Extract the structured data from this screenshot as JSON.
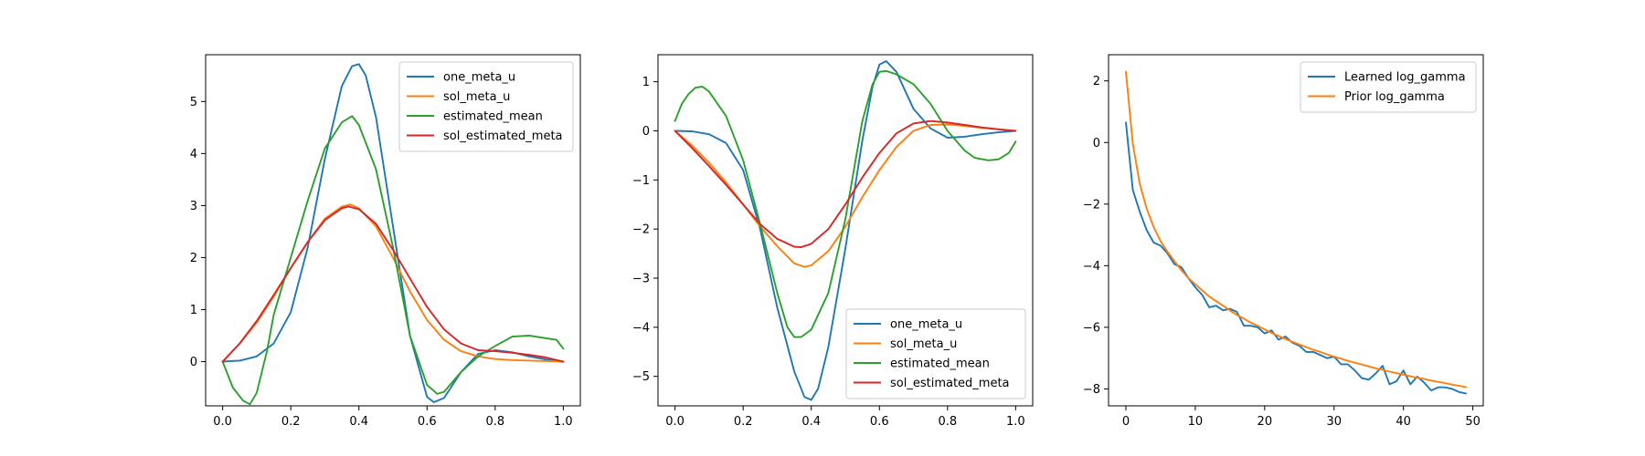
{
  "figure": {
    "background": "#ffffff"
  },
  "chart_data": [
    {
      "type": "line",
      "title": "",
      "xlabel": "",
      "ylabel": "",
      "xlim": [
        -0.05,
        1.05
      ],
      "ylim": [
        -0.85,
        5.9
      ],
      "xticks": [
        0.0,
        0.2,
        0.4,
        0.6,
        0.8,
        1.0
      ],
      "xtick_labels": [
        "0.0",
        "0.2",
        "0.4",
        "0.6",
        "0.8",
        "1.0"
      ],
      "yticks": [
        0,
        1,
        2,
        3,
        4,
        5
      ],
      "ytick_labels": [
        "0",
        "1",
        "2",
        "3",
        "4",
        "5"
      ],
      "legend_position": "upper right",
      "series": [
        {
          "name": "one_meta_u",
          "color": "#1f77b4",
          "x": [
            0,
            0.05,
            0.1,
            0.15,
            0.2,
            0.25,
            0.3,
            0.35,
            0.38,
            0.4,
            0.42,
            0.45,
            0.5,
            0.55,
            0.6,
            0.62,
            0.65,
            0.7,
            0.75,
            0.8,
            0.85,
            0.9,
            0.95,
            1.0
          ],
          "y": [
            0,
            0.02,
            0.1,
            0.35,
            0.95,
            2.2,
            3.9,
            5.3,
            5.68,
            5.72,
            5.5,
            4.7,
            2.6,
            0.5,
            -0.68,
            -0.78,
            -0.7,
            -0.2,
            0.15,
            0.22,
            0.18,
            0.1,
            0.04,
            0.0
          ]
        },
        {
          "name": "sol_meta_u",
          "color": "#ff7f0e",
          "x": [
            0,
            0.05,
            0.1,
            0.15,
            0.2,
            0.25,
            0.3,
            0.35,
            0.375,
            0.4,
            0.45,
            0.5,
            0.55,
            0.6,
            0.65,
            0.7,
            0.75,
            0.8,
            0.85,
            0.9,
            0.95,
            1.0
          ],
          "y": [
            0,
            0.35,
            0.75,
            1.25,
            1.8,
            2.3,
            2.75,
            2.98,
            3.02,
            2.95,
            2.6,
            2.0,
            1.35,
            0.8,
            0.42,
            0.2,
            0.1,
            0.05,
            0.03,
            0.02,
            0.01,
            0.0
          ]
        },
        {
          "name": "estimated_mean",
          "color": "#2ca02c",
          "x": [
            0,
            0.03,
            0.06,
            0.08,
            0.1,
            0.13,
            0.15,
            0.2,
            0.25,
            0.3,
            0.35,
            0.38,
            0.4,
            0.45,
            0.5,
            0.55,
            0.6,
            0.63,
            0.65,
            0.7,
            0.75,
            0.8,
            0.85,
            0.9,
            0.95,
            0.98,
            1.0
          ],
          "y": [
            0,
            -0.5,
            -0.75,
            -0.82,
            -0.6,
            0.2,
            0.9,
            2.0,
            3.1,
            4.1,
            4.6,
            4.72,
            4.55,
            3.7,
            2.2,
            0.5,
            -0.45,
            -0.62,
            -0.58,
            -0.2,
            0.1,
            0.3,
            0.48,
            0.5,
            0.45,
            0.42,
            0.25
          ]
        },
        {
          "name": "sol_estimated_meta",
          "color": "#d62728",
          "x": [
            0,
            0.05,
            0.1,
            0.15,
            0.2,
            0.25,
            0.3,
            0.35,
            0.37,
            0.4,
            0.45,
            0.5,
            0.55,
            0.6,
            0.65,
            0.7,
            0.75,
            0.8,
            0.85,
            0.9,
            0.95,
            1.0
          ],
          "y": [
            0,
            0.35,
            0.78,
            1.28,
            1.8,
            2.3,
            2.72,
            2.95,
            2.98,
            2.93,
            2.65,
            2.15,
            1.6,
            1.05,
            0.62,
            0.35,
            0.22,
            0.2,
            0.17,
            0.13,
            0.08,
            0.0
          ]
        }
      ]
    },
    {
      "type": "line",
      "title": "",
      "xlabel": "",
      "ylabel": "",
      "xlim": [
        -0.05,
        1.05
      ],
      "ylim": [
        -5.6,
        1.55
      ],
      "xticks": [
        0.0,
        0.2,
        0.4,
        0.6,
        0.8,
        1.0
      ],
      "xtick_labels": [
        "0.0",
        "0.2",
        "0.4",
        "0.6",
        "0.8",
        "1.0"
      ],
      "yticks": [
        -5,
        -4,
        -3,
        -2,
        -1,
        0,
        1
      ],
      "ytick_labels": [
        "−5",
        "−4",
        "−3",
        "−2",
        "−1",
        "0",
        "1"
      ],
      "legend_position": "lower right",
      "series": [
        {
          "name": "one_meta_u",
          "color": "#1f77b4",
          "x": [
            0,
            0.05,
            0.1,
            0.15,
            0.2,
            0.25,
            0.3,
            0.35,
            0.38,
            0.4,
            0.42,
            0.45,
            0.5,
            0.55,
            0.58,
            0.6,
            0.62,
            0.65,
            0.7,
            0.75,
            0.8,
            0.85,
            0.9,
            0.95,
            1.0
          ],
          "y": [
            0,
            -0.01,
            -0.07,
            -0.25,
            -0.8,
            -2.0,
            -3.6,
            -4.9,
            -5.42,
            -5.48,
            -5.25,
            -4.4,
            -2.4,
            -0.2,
            0.9,
            1.35,
            1.42,
            1.2,
            0.45,
            0.05,
            -0.14,
            -0.12,
            -0.07,
            -0.03,
            0.0
          ]
        },
        {
          "name": "sol_meta_u",
          "color": "#ff7f0e",
          "x": [
            0,
            0.05,
            0.1,
            0.15,
            0.2,
            0.25,
            0.3,
            0.35,
            0.38,
            0.4,
            0.45,
            0.5,
            0.55,
            0.6,
            0.65,
            0.7,
            0.75,
            0.8,
            0.85,
            0.9,
            0.95,
            1.0
          ],
          "y": [
            0,
            -0.3,
            -0.65,
            -1.05,
            -1.5,
            -1.95,
            -2.35,
            -2.7,
            -2.77,
            -2.74,
            -2.45,
            -1.95,
            -1.35,
            -0.8,
            -0.33,
            0.0,
            0.12,
            0.13,
            0.1,
            0.06,
            0.03,
            0.0
          ]
        },
        {
          "name": "estimated_mean",
          "color": "#2ca02c",
          "x": [
            0,
            0.02,
            0.04,
            0.06,
            0.08,
            0.1,
            0.15,
            0.2,
            0.25,
            0.3,
            0.33,
            0.35,
            0.37,
            0.4,
            0.45,
            0.5,
            0.55,
            0.58,
            0.6,
            0.62,
            0.65,
            0.7,
            0.75,
            0.8,
            0.85,
            0.88,
            0.92,
            0.95,
            0.98,
            1.0
          ],
          "y": [
            0.2,
            0.55,
            0.75,
            0.88,
            0.9,
            0.8,
            0.3,
            -0.6,
            -1.9,
            -3.3,
            -4.0,
            -4.2,
            -4.2,
            -4.05,
            -3.3,
            -1.8,
            0.2,
            0.95,
            1.2,
            1.22,
            1.15,
            0.95,
            0.55,
            0.0,
            -0.4,
            -0.55,
            -0.6,
            -0.58,
            -0.45,
            -0.22
          ]
        },
        {
          "name": "sol_estimated_meta",
          "color": "#d62728",
          "x": [
            0,
            0.05,
            0.1,
            0.15,
            0.2,
            0.25,
            0.3,
            0.35,
            0.37,
            0.4,
            0.45,
            0.5,
            0.55,
            0.6,
            0.65,
            0.7,
            0.75,
            0.8,
            0.85,
            0.9,
            0.95,
            1.0
          ],
          "y": [
            0,
            -0.35,
            -0.72,
            -1.1,
            -1.5,
            -1.9,
            -2.2,
            -2.36,
            -2.37,
            -2.3,
            -2.0,
            -1.5,
            -0.95,
            -0.45,
            -0.05,
            0.15,
            0.2,
            0.17,
            0.12,
            0.07,
            0.03,
            0.0
          ]
        }
      ]
    },
    {
      "type": "line",
      "title": "",
      "xlabel": "",
      "ylabel": "",
      "xlim": [
        -2.5,
        51.5
      ],
      "ylim": [
        -8.55,
        2.85
      ],
      "xticks": [
        0,
        10,
        20,
        30,
        40,
        50
      ],
      "xtick_labels": [
        "0",
        "10",
        "20",
        "30",
        "40",
        "50"
      ],
      "yticks": [
        -8,
        -6,
        -4,
        -2,
        0,
        2
      ],
      "ytick_labels": [
        "−8",
        "−6",
        "−4",
        "−2",
        "0",
        "2"
      ],
      "legend_position": "upper right",
      "series": [
        {
          "name": "Learned log_gamma",
          "color": "#1f77b4",
          "x": [
            0,
            1,
            2,
            3,
            4,
            5,
            6,
            7,
            8,
            9,
            10,
            11,
            12,
            13,
            14,
            15,
            16,
            17,
            18,
            19,
            20,
            21,
            22,
            23,
            24,
            25,
            26,
            27,
            28,
            29,
            30,
            31,
            32,
            33,
            34,
            35,
            36,
            37,
            38,
            39,
            40,
            41,
            42,
            43,
            44,
            45,
            46,
            47,
            48,
            49
          ],
          "y": [
            0.65,
            -1.55,
            -2.25,
            -2.85,
            -3.25,
            -3.35,
            -3.6,
            -3.95,
            -4.05,
            -4.4,
            -4.7,
            -4.95,
            -5.35,
            -5.3,
            -5.45,
            -5.4,
            -5.5,
            -5.95,
            -5.95,
            -6.0,
            -6.2,
            -6.1,
            -6.4,
            -6.3,
            -6.5,
            -6.6,
            -6.8,
            -6.8,
            -6.9,
            -7.0,
            -6.95,
            -7.2,
            -7.2,
            -7.4,
            -7.65,
            -7.7,
            -7.5,
            -7.25,
            -7.85,
            -7.75,
            -7.4,
            -7.85,
            -7.6,
            -7.8,
            -8.05,
            -7.95,
            -7.95,
            -8.0,
            -8.1,
            -8.15
          ]
        },
        {
          "name": "Prior log_gamma",
          "color": "#ff7f0e",
          "x": [
            0,
            1,
            2,
            3,
            4,
            5,
            6,
            7,
            8,
            9,
            10,
            11,
            12,
            13,
            14,
            15,
            16,
            17,
            18,
            19,
            20,
            21,
            22,
            23,
            24,
            25,
            26,
            27,
            28,
            29,
            30,
            31,
            32,
            33,
            34,
            35,
            36,
            37,
            38,
            39,
            40,
            41,
            42,
            43,
            44,
            45,
            46,
            47,
            48,
            49
          ],
          "y": [
            2.3,
            -0.05,
            -1.35,
            -2.15,
            -2.75,
            -3.2,
            -3.55,
            -3.85,
            -4.15,
            -4.4,
            -4.6,
            -4.8,
            -5.0,
            -5.15,
            -5.3,
            -5.45,
            -5.6,
            -5.72,
            -5.85,
            -5.95,
            -6.07,
            -6.18,
            -6.28,
            -6.38,
            -6.47,
            -6.56,
            -6.64,
            -6.73,
            -6.8,
            -6.88,
            -6.95,
            -7.02,
            -7.09,
            -7.15,
            -7.21,
            -7.27,
            -7.33,
            -7.38,
            -7.44,
            -7.49,
            -7.54,
            -7.59,
            -7.64,
            -7.68,
            -7.73,
            -7.77,
            -7.81,
            -7.86,
            -7.9,
            -7.94
          ]
        }
      ]
    }
  ]
}
